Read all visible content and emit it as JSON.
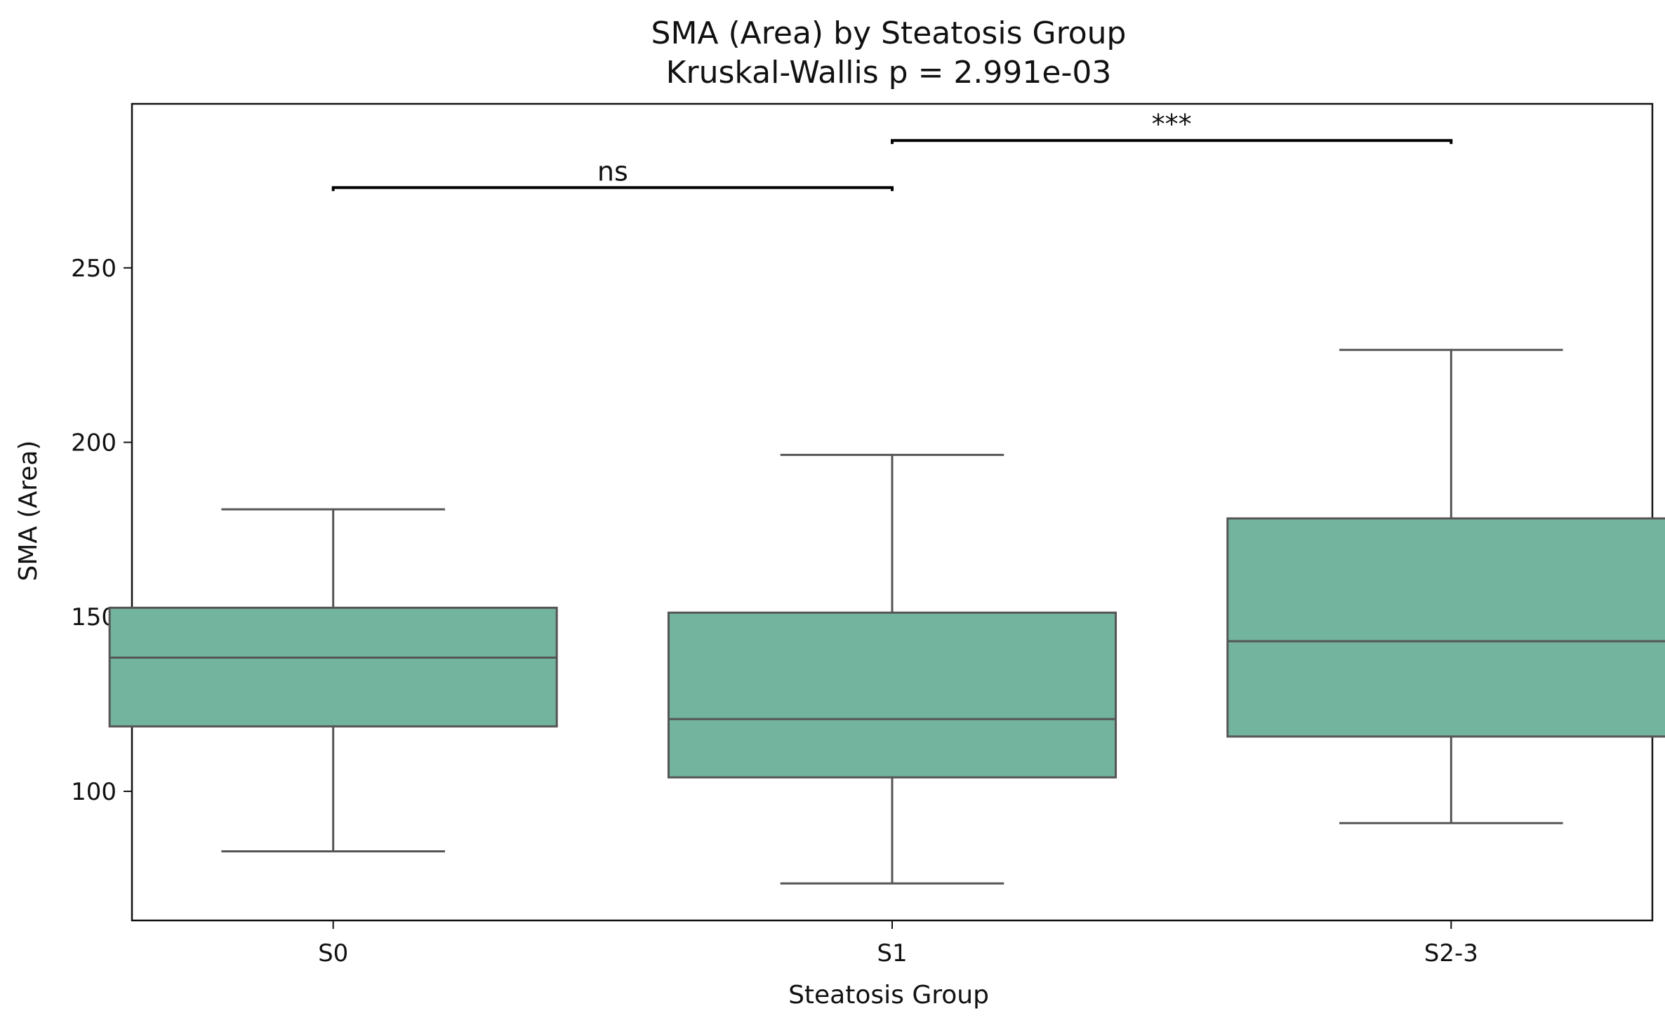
{
  "chart_data": {
    "type": "box",
    "title": "SMA (Area) by Steatosis Group",
    "subtitle": "Kruskal-Wallis p = 2.991e-03",
    "xlabel": "Steatosis Group",
    "ylabel": "SMA (Area)",
    "ylim": [
      63,
      297
    ],
    "yticks": [
      100,
      150,
      200,
      250
    ],
    "categories": [
      "S0",
      "S1",
      "S2-3"
    ],
    "boxes": [
      {
        "category": "S0",
        "whisker_low": 82.8,
        "q1": 118.6,
        "median": 138.3,
        "q3": 152.6,
        "whisker_high": 180.8
      },
      {
        "category": "S1",
        "whisker_low": 73.6,
        "q1": 104.0,
        "median": 120.7,
        "q3": 151.2,
        "whisker_high": 196.4
      },
      {
        "category": "S2-3",
        "whisker_low": 90.9,
        "q1": 115.7,
        "median": 143.0,
        "q3": 178.2,
        "whisker_high": 226.5
      }
    ],
    "box_color": "#73b49f",
    "line_color": "#555555",
    "grid": false,
    "annotations": [
      {
        "from": "S0",
        "to": "S1",
        "y": 273.0,
        "label": "ns"
      },
      {
        "from": "S1",
        "to": "S2-3",
        "y": 286.5,
        "label": "***"
      }
    ]
  }
}
